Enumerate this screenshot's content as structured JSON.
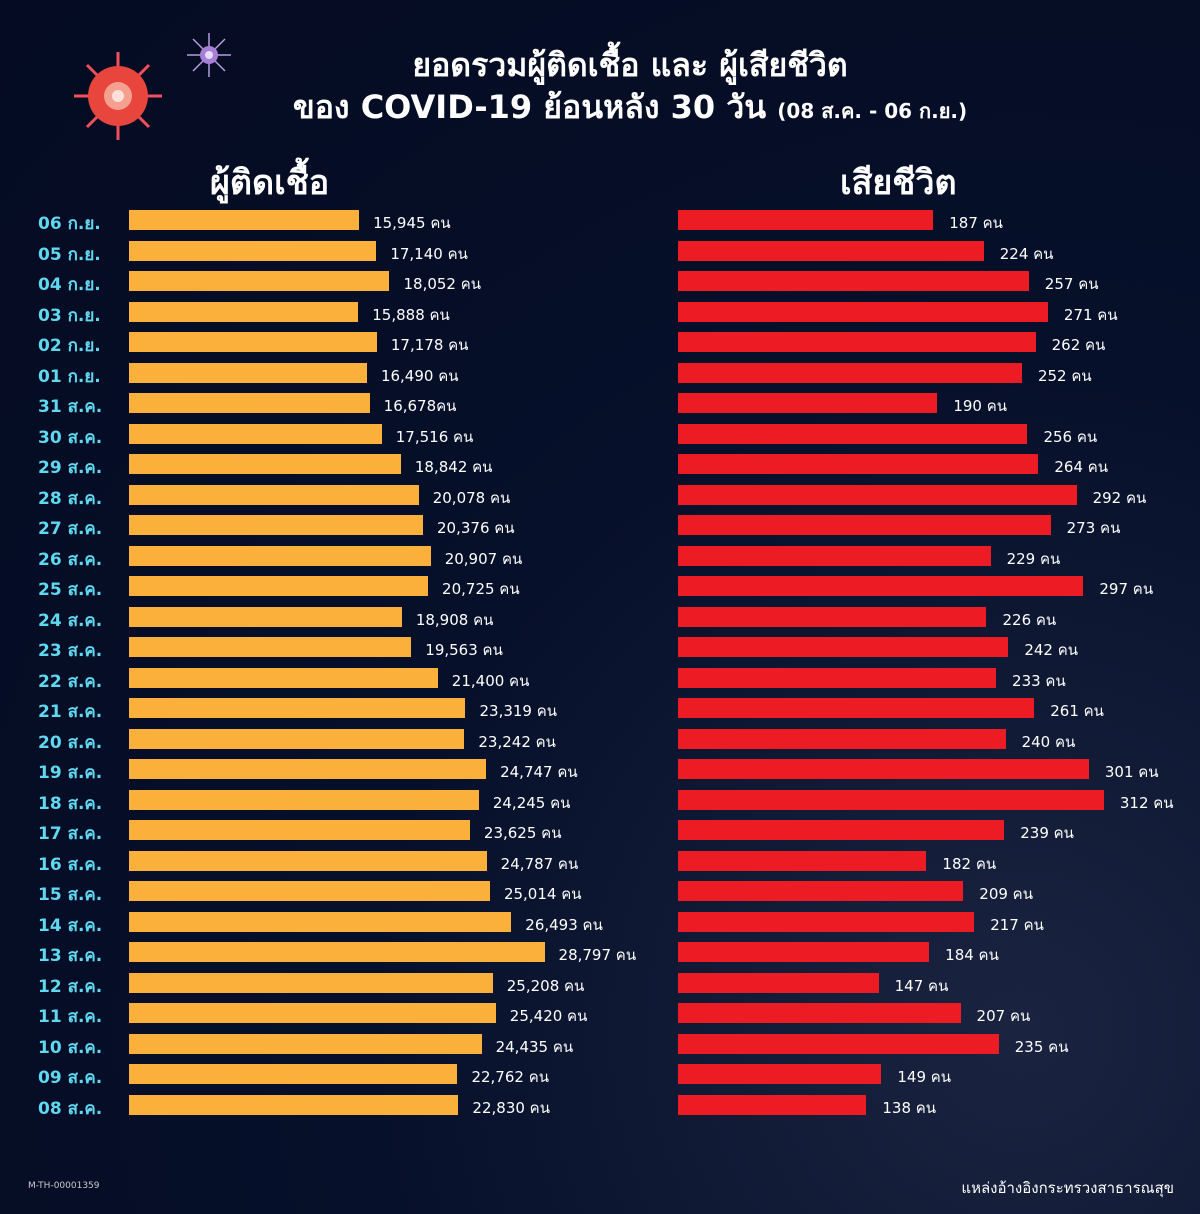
{
  "header": {
    "title_line1": "ยอดรวมผู้ติดเชื้อ และ ผู้เสียชีวิต",
    "title_line2": "ของ COVID-19 ย้อนหลัง 30 วัน",
    "title_range": "(08 ส.ค. - 06 ก.ย.)"
  },
  "footer": {
    "id": "M-TH-00001359",
    "source": "แหล่งอ้างอิงกระทรวงสาธารณสุข"
  },
  "colors": {
    "infected": "#fbb03b",
    "deaths": "#ed1c24",
    "date_label": "#5fd8f0",
    "background": "#050d26"
  },
  "chart_data": [
    {
      "type": "bar",
      "orientation": "horizontal",
      "title": "ผู้ติดเชื้อ",
      "unit": "คน",
      "categories": [
        "06 ก.ย.",
        "05 ก.ย.",
        "04 ก.ย.",
        "03 ก.ย.",
        "02 ก.ย.",
        "01 ก.ย.",
        "31 ส.ค.",
        "30 ส.ค.",
        "29 ส.ค.",
        "28 ส.ค.",
        "27 ส.ค.",
        "26 ส.ค.",
        "25 ส.ค.",
        "24 ส.ค.",
        "23 ส.ค.",
        "22 ส.ค.",
        "21 ส.ค.",
        "20 ส.ค.",
        "19 ส.ค.",
        "18 ส.ค.",
        "17 ส.ค.",
        "16 ส.ค.",
        "15 ส.ค.",
        "14 ส.ค.",
        "13 ส.ค.",
        "12 ส.ค.",
        "11 ส.ค.",
        "10 ส.ค.",
        "09 ส.ค.",
        "08 ส.ค."
      ],
      "values": [
        15945,
        17140,
        18052,
        15888,
        17178,
        16490,
        16678,
        17516,
        18842,
        20078,
        20376,
        20907,
        20725,
        18908,
        19563,
        21400,
        23319,
        23242,
        24747,
        24245,
        23625,
        24787,
        25014,
        26493,
        28797,
        25208,
        25420,
        24435,
        22762,
        22830
      ],
      "labels": [
        "15,945 คน",
        "17,140 คน",
        "18,052 คน",
        "15,888 คน",
        "17,178 คน",
        "16,490 คน",
        "16,678คน",
        "17,516 คน",
        "18,842 คน",
        "20,078 คน",
        "20,376 คน",
        "20,907 คน",
        "20,725 คน",
        "18,908 คน",
        "19,563 คน",
        "21,400 คน",
        "23,319 คน",
        "23,242 คน",
        "24,747 คน",
        "24,245 คน",
        "23,625 คน",
        "24,787 คน",
        "25,014 คน",
        "26,493 คน",
        "28,797 คน",
        "25,208 คน",
        "25,420 คน",
        "24,435 คน",
        "22,762 คน",
        "22,830 คน"
      ]
    },
    {
      "type": "bar",
      "orientation": "horizontal",
      "title": "เสียชีวิต",
      "unit": "คน",
      "values": [
        187,
        224,
        257,
        271,
        262,
        252,
        190,
        256,
        264,
        292,
        273,
        229,
        297,
        226,
        242,
        233,
        261,
        240,
        301,
        312,
        239,
        182,
        209,
        217,
        184,
        147,
        207,
        235,
        149,
        138
      ],
      "labels": [
        "187 คน",
        "224 คน",
        "257 คน",
        "271 คน",
        "262 คน",
        "252 คน",
        "190 คน",
        "256 คน",
        "264 คน",
        "292 คน",
        "273 คน",
        "229 คน",
        "297 คน",
        "226 คน",
        "242 คน",
        "233 คน",
        "261 คน",
        "240 คน",
        "301 คน",
        "312 คน",
        "239 คน",
        "182 คน",
        "209 คน",
        "217 คน",
        "184 คน",
        "147 คน",
        "207 คน",
        "235 คน",
        "149 คน",
        "138 คน"
      ]
    }
  ]
}
